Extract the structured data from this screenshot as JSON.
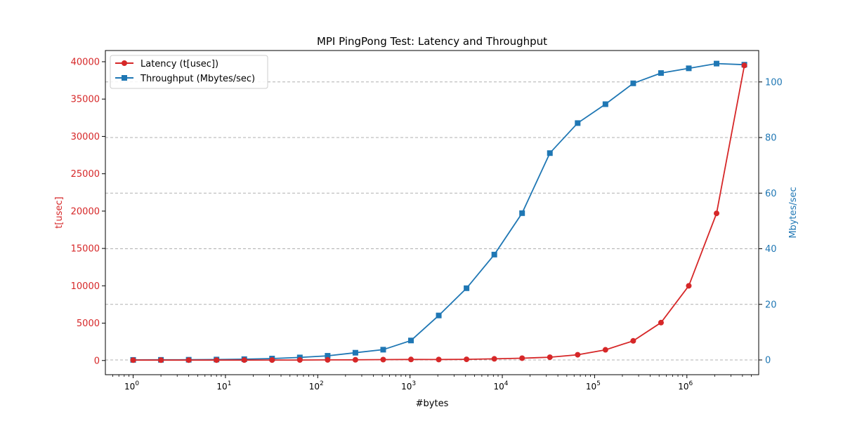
{
  "chart_data": {
    "type": "line",
    "title": "MPI PingPong Test: Latency and Throughput",
    "xlabel": "#bytes",
    "xscale": "log",
    "xlim": [
      0.5,
      6000000
    ],
    "x_ticks": [
      {
        "base": "10",
        "exp": "0"
      },
      {
        "base": "10",
        "exp": "1"
      },
      {
        "base": "10",
        "exp": "2"
      },
      {
        "base": "10",
        "exp": "3"
      },
      {
        "base": "10",
        "exp": "4"
      },
      {
        "base": "10",
        "exp": "5"
      },
      {
        "base": "10",
        "exp": "6"
      }
    ],
    "x": [
      1,
      2,
      4,
      8,
      16,
      32,
      64,
      128,
      256,
      512,
      1024,
      2048,
      4096,
      8192,
      16384,
      32768,
      65536,
      131072,
      262144,
      524288,
      1048576,
      2097152,
      4194304
    ],
    "left_axis": {
      "label": "t[usec]",
      "color": "#d62728",
      "ylim": [
        -1900,
        41500
      ],
      "ticks": [
        "0",
        "5000",
        "10000",
        "15000",
        "20000",
        "25000",
        "30000",
        "35000",
        "40000"
      ]
    },
    "right_axis": {
      "label": "Mbytes/sec",
      "color": "#1f77b4",
      "ylim": [
        -5.3,
        111.3
      ],
      "ticks": [
        "0",
        "20",
        "40",
        "60",
        "80",
        "100"
      ]
    },
    "grid": "horizontal dashed (right axis)",
    "legend_position": "top-left",
    "series": [
      {
        "name": "Latency (t[usec])",
        "axis": "left",
        "color": "#d62728",
        "marker": "circle",
        "values": [
          50,
          50,
          52,
          53,
          56,
          62,
          68,
          80,
          95,
          120,
          140,
          130,
          160,
          220,
          310,
          440,
          770,
          1430,
          2630,
          5070,
          10000,
          19700,
          39500
        ]
      },
      {
        "name": "Throughput (Mbytes/sec)",
        "axis": "right",
        "color": "#1f77b4",
        "marker": "square",
        "values": [
          0.02,
          0.04,
          0.08,
          0.15,
          0.28,
          0.5,
          0.9,
          1.5,
          2.6,
          3.7,
          7.0,
          16.0,
          25.8,
          37.9,
          52.8,
          74.4,
          85.2,
          92.0,
          99.5,
          103.2,
          104.9,
          106.6,
          106.2
        ]
      }
    ]
  }
}
